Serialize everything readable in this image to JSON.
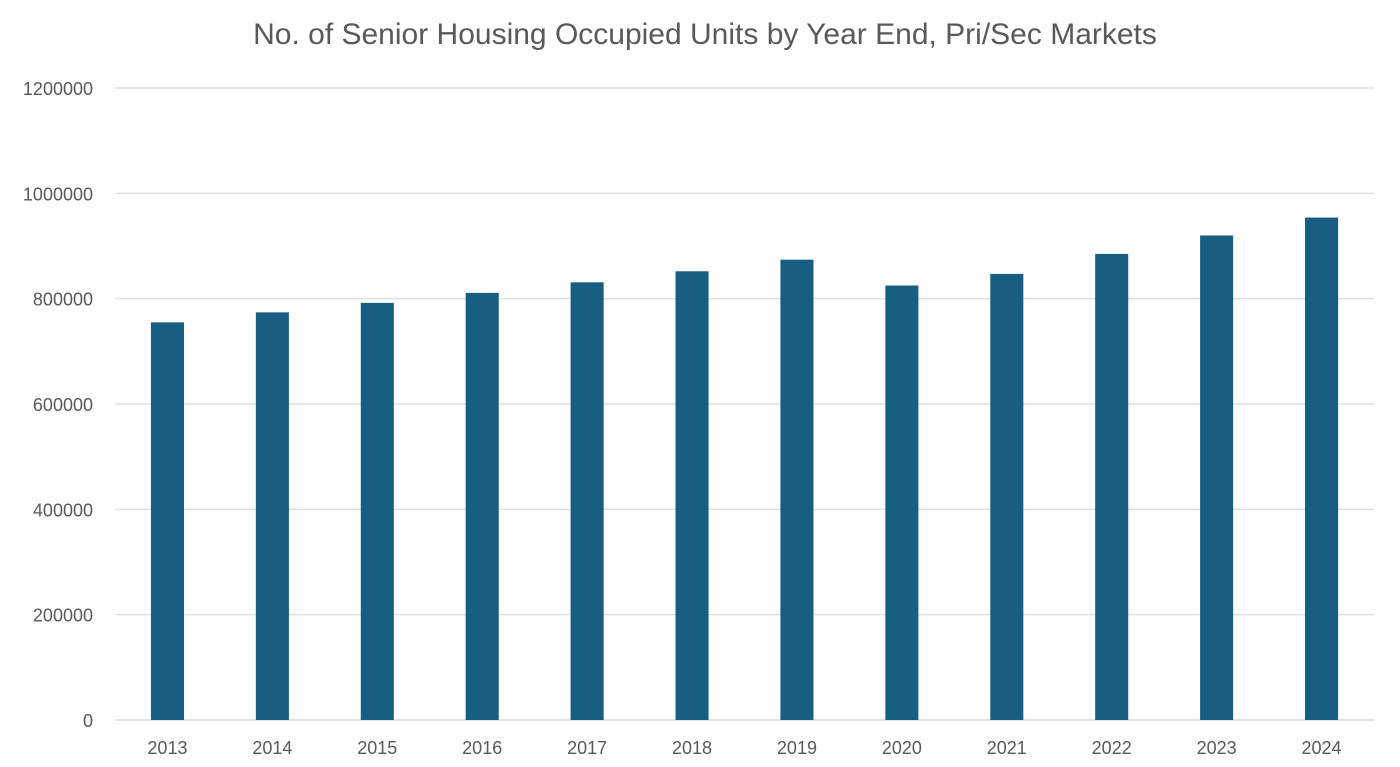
{
  "chart_data": {
    "type": "bar",
    "title": "No. of Senior Housing Occupied Units by Year End, Pri/Sec Markets",
    "xlabel": "",
    "ylabel": "",
    "categories": [
      "2013",
      "2014",
      "2015",
      "2016",
      "2017",
      "2018",
      "2019",
      "2020",
      "2021",
      "2022",
      "2023",
      "2024"
    ],
    "values": [
      755000,
      774000,
      792000,
      811000,
      831000,
      852000,
      874000,
      825000,
      847000,
      885000,
      920000,
      954000
    ],
    "ylim": [
      0,
      1200000
    ],
    "yticks": [
      "0",
      "200000",
      "400000",
      "600000",
      "800000",
      "1000000",
      "1200000"
    ],
    "grid": true,
    "legend": "none",
    "bar_color": "#175e82",
    "grid_color": "#d9d9d9",
    "text_color": "#595959"
  }
}
